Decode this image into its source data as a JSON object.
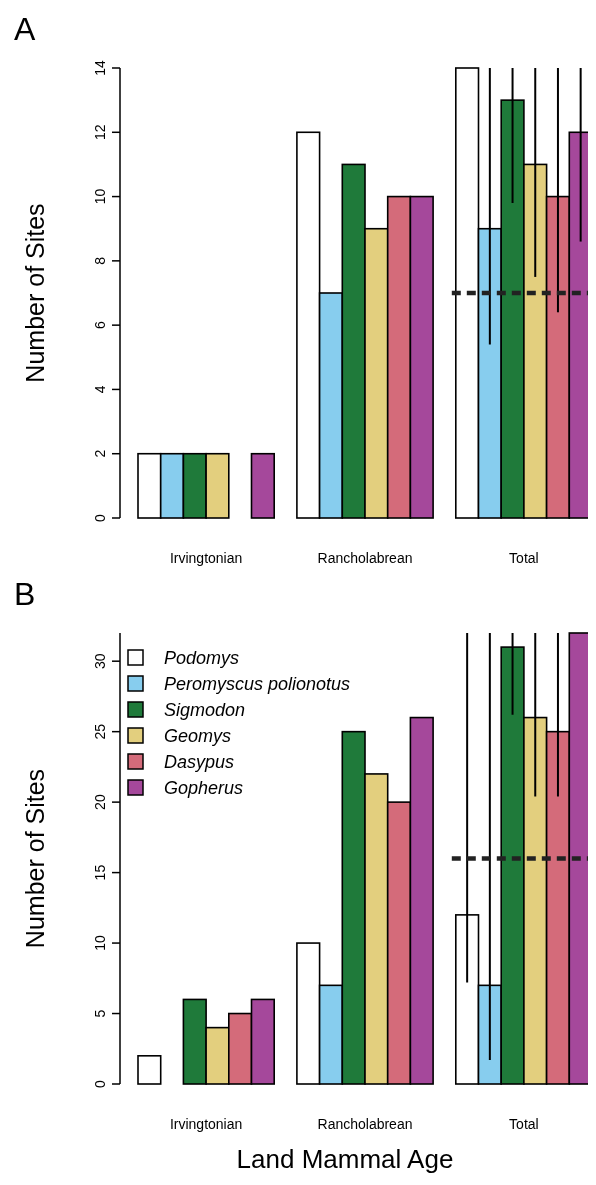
{
  "chart_data": [
    {
      "type": "bar",
      "title": "A",
      "ylabel": "Number of Sites",
      "categories": [
        "Irvingtonian",
        "Rancholabrean",
        "Total"
      ],
      "ylim": [
        0,
        14
      ],
      "yticks": [
        0,
        2,
        4,
        6,
        8,
        10,
        12,
        14
      ],
      "legend": false,
      "series": [
        {
          "color": "#ffffff",
          "values": [
            2,
            12,
            14
          ],
          "errors": [
            null,
            null,
            null
          ]
        },
        {
          "color": "#87cdee",
          "values": [
            2,
            7,
            9
          ],
          "errors": [
            null,
            null,
            [
              5.4,
              14
            ]
          ]
        },
        {
          "color": "#1f7a3a",
          "values": [
            2,
            11,
            13
          ],
          "errors": [
            null,
            null,
            [
              9.8,
              14
            ]
          ]
        },
        {
          "color": "#e3cf7e",
          "values": [
            2,
            9,
            11
          ],
          "errors": [
            null,
            null,
            [
              7.5,
              14
            ]
          ]
        },
        {
          "color": "#d46b7a",
          "values": [
            0,
            10,
            10
          ],
          "errors": [
            null,
            null,
            [
              6.4,
              14
            ]
          ]
        },
        {
          "color": "#a5489b",
          "values": [
            2,
            10,
            12
          ],
          "errors": [
            null,
            null,
            [
              8.6,
              14
            ]
          ]
        }
      ],
      "ref_lines": [
        {
          "axis": "y",
          "value": 7,
          "line_style": "dashed",
          "color": "#222222"
        }
      ]
    },
    {
      "type": "bar",
      "title": "B",
      "ylabel": "Number of Sites",
      "xlabel": "Land Mammal Age",
      "categories": [
        "Irvingtonian",
        "Rancholabrean",
        "Total"
      ],
      "ylim": [
        0,
        32
      ],
      "yticks": [
        0,
        5,
        10,
        15,
        20,
        25,
        30
      ],
      "legend": "top left",
      "series": [
        {
          "name": "Podomys",
          "color": "#ffffff",
          "values": [
            2,
            10,
            12
          ],
          "errors": [
            null,
            null,
            [
              7.2,
              32
            ]
          ]
        },
        {
          "name": "Peromyscus polionotus",
          "color": "#87cdee",
          "values": [
            0,
            7,
            7
          ],
          "errors": [
            null,
            null,
            [
              1.7,
              32
            ]
          ]
        },
        {
          "name": "Sigmodon",
          "color": "#1f7a3a",
          "values": [
            6,
            25,
            31
          ],
          "errors": [
            null,
            null,
            [
              26.2,
              32
            ]
          ]
        },
        {
          "name": "Geomys",
          "color": "#e3cf7e",
          "values": [
            4,
            22,
            26
          ],
          "errors": [
            null,
            null,
            [
              20.4,
              32
            ]
          ]
        },
        {
          "name": "Dasypus",
          "color": "#d46b7a",
          "values": [
            5,
            20,
            25
          ],
          "errors": [
            null,
            null,
            [
              20.4,
              32
            ]
          ]
        },
        {
          "name": "Gopherus",
          "color": "#a5489b",
          "values": [
            6,
            26,
            32
          ],
          "errors": [
            null,
            null,
            null
          ]
        }
      ],
      "ref_lines": [
        {
          "axis": "y",
          "value": 16,
          "line_style": "dashed",
          "color": "#222222"
        }
      ]
    }
  ]
}
